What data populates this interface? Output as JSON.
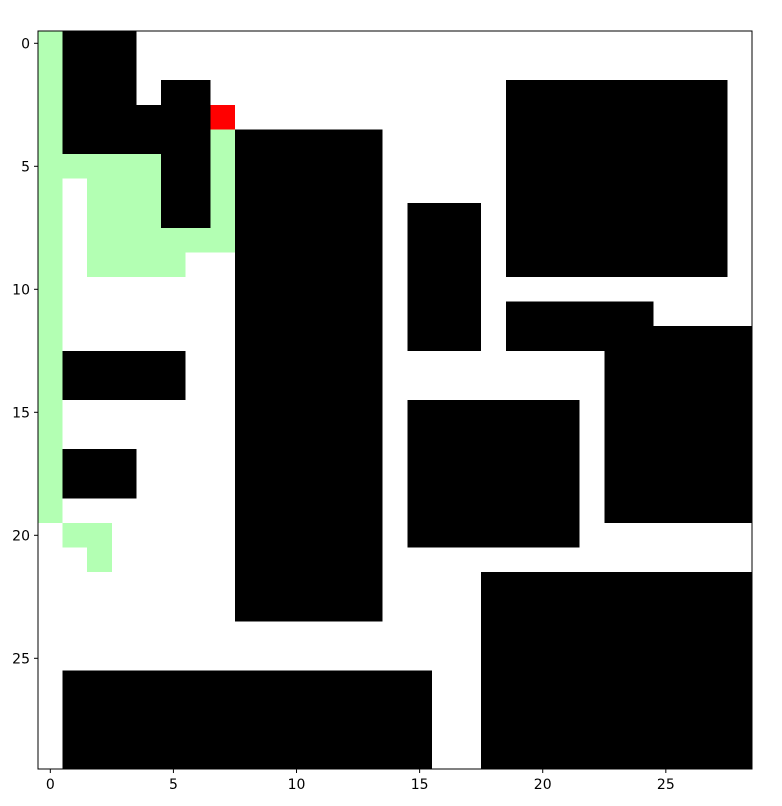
{
  "chart_data": {
    "type": "heatmap",
    "title": "",
    "xlabel": "",
    "ylabel": "",
    "grid_size": [
      29,
      30
    ],
    "xlim": [
      -0.5,
      28.5
    ],
    "ylim": [
      29.5,
      -0.5
    ],
    "x_ticks": [
      0,
      5,
      10,
      15,
      20,
      25
    ],
    "y_ticks": [
      0,
      5,
      10,
      15,
      20,
      25
    ],
    "colors": {
      "obstacle": "#000000",
      "free": "#ffffff",
      "visited": "#b3ffb3",
      "goal": "#ff0000"
    },
    "obstacles": [
      {
        "col0": 1,
        "col1": 3,
        "row0": 0,
        "row1": 2
      },
      {
        "col0": 1,
        "col1": 4,
        "row0": 3,
        "row1": 4
      },
      {
        "col0": 5,
        "col1": 6,
        "row0": 2,
        "row1": 7
      },
      {
        "col0": 8,
        "col1": 13,
        "row0": 4,
        "row1": 23
      },
      {
        "col0": 15,
        "col1": 17,
        "row0": 7,
        "row1": 12
      },
      {
        "col0": 19,
        "col1": 27,
        "row0": 2,
        "row1": 9
      },
      {
        "col0": 19,
        "col1": 24,
        "row0": 11,
        "row1": 12
      },
      {
        "col0": 23,
        "col1": 28,
        "row0": 12,
        "row1": 19
      },
      {
        "col0": 1,
        "col1": 5,
        "row0": 13,
        "row1": 14
      },
      {
        "col0": 1,
        "col1": 3,
        "row0": 17,
        "row1": 18
      },
      {
        "col0": 15,
        "col1": 21,
        "row0": 15,
        "row1": 20
      },
      {
        "col0": 18,
        "col1": 28,
        "row0": 22,
        "row1": 29
      },
      {
        "col0": 1,
        "col1": 15,
        "row0": 26,
        "row1": 29
      }
    ],
    "visited": [
      {
        "col0": 0,
        "col1": 0,
        "row0": 0,
        "row1": 19
      },
      {
        "col0": 1,
        "col1": 4,
        "row0": 5,
        "row1": 5
      },
      {
        "col0": 2,
        "col1": 4,
        "row0": 6,
        "row1": 7
      },
      {
        "col0": 2,
        "col1": 7,
        "row0": 8,
        "row1": 8
      },
      {
        "col0": 2,
        "col1": 5,
        "row0": 9,
        "row1": 9
      },
      {
        "col0": 7,
        "col1": 7,
        "row0": 4,
        "row1": 7
      },
      {
        "col0": 1,
        "col1": 2,
        "row0": 20,
        "row1": 20
      },
      {
        "col0": 2,
        "col1": 2,
        "row0": 21,
        "row1": 21
      }
    ],
    "goal": {
      "col": 7,
      "row": 3
    }
  }
}
